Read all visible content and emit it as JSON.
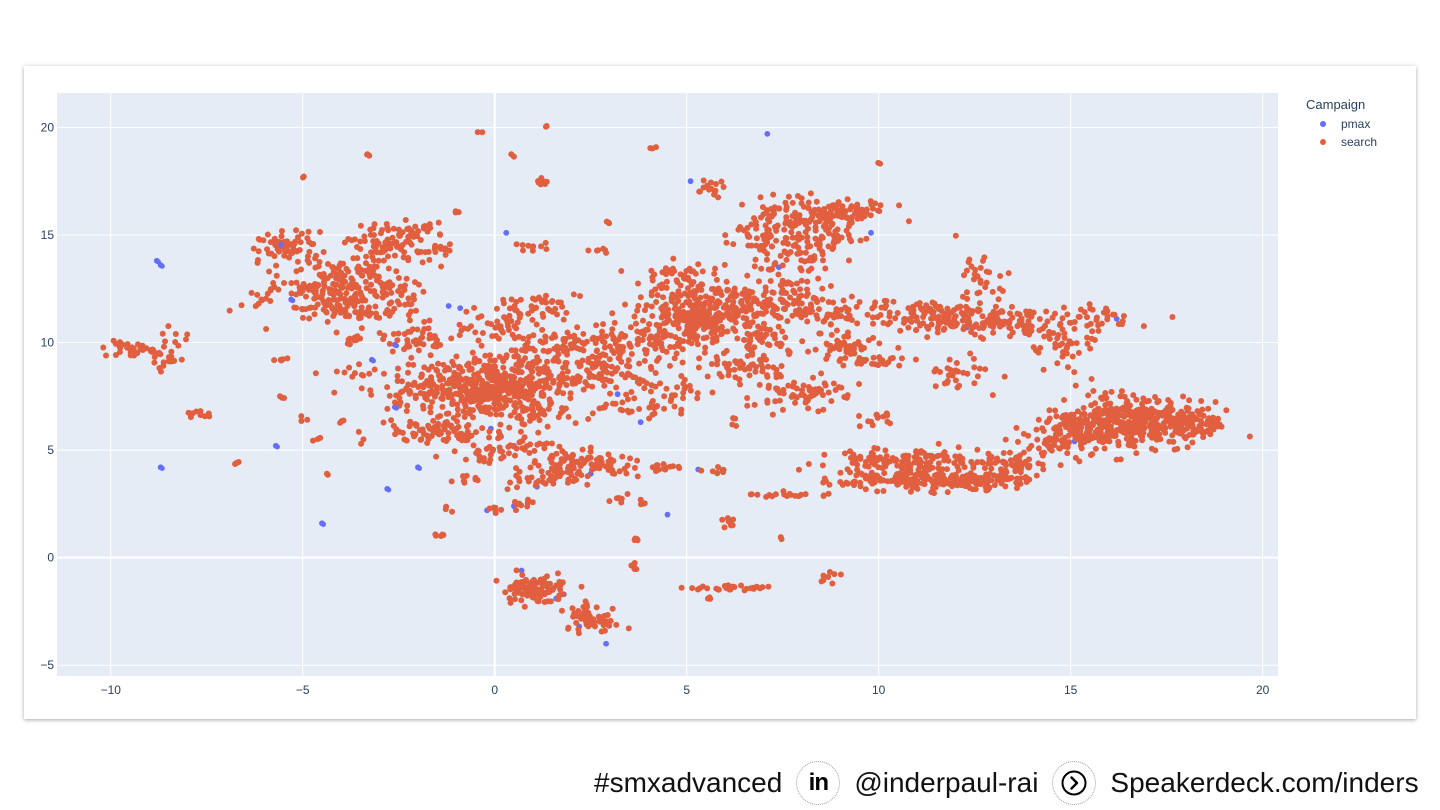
{
  "chart_data": {
    "type": "scatter",
    "title": "",
    "xlabel": "",
    "ylabel": "",
    "xlim": [
      -11.4,
      20.4
    ],
    "ylim": [
      -5.5,
      21.6
    ],
    "x_ticks": [
      -10,
      -5,
      0,
      5,
      10,
      15,
      20
    ],
    "y_ticks": [
      -5,
      0,
      5,
      10,
      15,
      20
    ],
    "x_tick_labels": [
      "−10",
      "−5",
      "0",
      "5",
      "10",
      "15",
      "20"
    ],
    "y_tick_labels": [
      "−5",
      "0",
      "5",
      "10",
      "15",
      "20"
    ],
    "grid": true,
    "legend": {
      "title": "Campaign",
      "placement": "top-right"
    },
    "series": [
      {
        "name": "pmax",
        "color": "#636efa",
        "points": [
          [
            -8.8,
            13.8
          ],
          [
            -8.7,
            13.6
          ],
          [
            -8.7,
            4.2
          ],
          [
            -5.6,
            14.6
          ],
          [
            -5.3,
            12.0
          ],
          [
            -5.7,
            5.2
          ],
          [
            -4.5,
            1.6
          ],
          [
            -3.2,
            9.2
          ],
          [
            -2.8,
            3.2
          ],
          [
            -2.6,
            7.0
          ],
          [
            -2.6,
            9.9
          ],
          [
            -2.0,
            4.2
          ],
          [
            -1.2,
            11.7
          ],
          [
            -0.9,
            11.6
          ],
          [
            -0.1,
            6.0
          ],
          [
            0.3,
            15.1
          ],
          [
            0.5,
            5.2
          ],
          [
            0.5,
            2.4
          ],
          [
            0.7,
            -0.6
          ],
          [
            0.9,
            -1.3
          ],
          [
            1.1,
            3.3
          ],
          [
            1.8,
            -1.7
          ],
          [
            2.2,
            -3.2
          ],
          [
            2.5,
            3.9
          ],
          [
            2.9,
            -4.0
          ],
          [
            3.2,
            7.6
          ],
          [
            3.8,
            6.3
          ],
          [
            4.5,
            2.0
          ],
          [
            5.3,
            4.1
          ],
          [
            5.1,
            17.5
          ],
          [
            7.1,
            19.7
          ],
          [
            7.4,
            13.5
          ],
          [
            9.8,
            15.1
          ],
          [
            12.3,
            10.7
          ],
          [
            13.4,
            10.9
          ],
          [
            15.1,
            5.4
          ],
          [
            15.9,
            5.6
          ],
          [
            16.2,
            11.1
          ],
          [
            1.6,
            -1.9
          ],
          [
            -0.2,
            2.2
          ]
        ]
      },
      {
        "name": "search",
        "color": "#e15f3f",
        "clusters": [
          [
            -9.7,
            9.8,
            0.35,
            0.2,
            18
          ],
          [
            -9.1,
            9.5,
            0.3,
            0.25,
            16
          ],
          [
            -8.5,
            9.3,
            0.25,
            0.3,
            16
          ],
          [
            -8.3,
            10.2,
            0.2,
            0.25,
            8
          ],
          [
            -7.7,
            6.7,
            0.15,
            0.12,
            10
          ],
          [
            -6.7,
            4.4,
            0.06,
            0.06,
            3
          ],
          [
            -5.3,
            14.5,
            0.45,
            0.35,
            60
          ],
          [
            -4.5,
            12.4,
            0.7,
            0.65,
            140
          ],
          [
            -4.0,
            13.2,
            0.5,
            0.4,
            40
          ],
          [
            -3.4,
            11.6,
            0.6,
            0.45,
            70
          ],
          [
            -2.8,
            12.8,
            0.45,
            0.45,
            45
          ],
          [
            -2.7,
            14.6,
            0.6,
            0.45,
            70
          ],
          [
            -2.1,
            15.1,
            0.35,
            0.3,
            25
          ],
          [
            -1.6,
            14.3,
            0.35,
            0.2,
            15
          ],
          [
            -5.5,
            7.5,
            0.08,
            0.08,
            3
          ],
          [
            -5.0,
            6.5,
            0.08,
            0.08,
            3
          ],
          [
            -4.7,
            5.5,
            0.08,
            0.08,
            3
          ],
          [
            -3.6,
            8.6,
            0.2,
            0.15,
            8
          ],
          [
            -2.1,
            10.1,
            0.4,
            0.3,
            40
          ],
          [
            -1.1,
            8.1,
            1.0,
            0.65,
            240
          ],
          [
            0.0,
            7.7,
            0.7,
            0.6,
            150
          ],
          [
            -1.5,
            5.9,
            0.9,
            0.35,
            90
          ],
          [
            0.8,
            9.2,
            0.7,
            0.35,
            60
          ],
          [
            1.4,
            8.1,
            0.9,
            0.35,
            80
          ],
          [
            1.0,
            11.6,
            0.7,
            0.45,
            50
          ],
          [
            0.1,
            10.6,
            0.7,
            0.3,
            40
          ],
          [
            1.9,
            10.1,
            0.6,
            0.3,
            40
          ],
          [
            2.7,
            8.7,
            1.0,
            0.4,
            80
          ],
          [
            3.2,
            9.8,
            0.7,
            0.35,
            50
          ],
          [
            4.2,
            10.2,
            0.8,
            0.5,
            60
          ],
          [
            5.1,
            11.3,
            0.8,
            0.7,
            220
          ],
          [
            6.2,
            11.8,
            0.6,
            0.5,
            80
          ],
          [
            6.7,
            10.3,
            0.6,
            0.5,
            60
          ],
          [
            6.3,
            8.9,
            0.4,
            0.35,
            40
          ],
          [
            4.9,
            12.9,
            0.5,
            0.4,
            50
          ],
          [
            7.8,
            12.2,
            0.7,
            0.5,
            70
          ],
          [
            8.7,
            11.4,
            0.9,
            0.3,
            60
          ],
          [
            7.6,
            14.2,
            0.6,
            0.5,
            50
          ],
          [
            8.0,
            15.9,
            0.8,
            0.4,
            110
          ],
          [
            9.2,
            16.0,
            0.5,
            0.25,
            60
          ],
          [
            6.7,
            15.0,
            0.4,
            0.25,
            25
          ],
          [
            5.5,
            17.2,
            0.3,
            0.2,
            15
          ],
          [
            8.0,
            7.6,
            0.6,
            0.35,
            70
          ],
          [
            9.1,
            9.9,
            0.6,
            0.25,
            40
          ],
          [
            9.9,
            9.2,
            0.6,
            0.2,
            30
          ],
          [
            7.1,
            8.7,
            0.3,
            0.4,
            15
          ],
          [
            2.3,
            4.4,
            0.6,
            0.35,
            90
          ],
          [
            1.4,
            3.7,
            0.7,
            0.3,
            40
          ],
          [
            1.1,
            6.8,
            0.7,
            0.25,
            40
          ],
          [
            0.7,
            5.3,
            0.5,
            0.3,
            30
          ],
          [
            -0.3,
            4.7,
            0.5,
            0.25,
            20
          ],
          [
            4.4,
            4.2,
            0.3,
            0.12,
            14
          ],
          [
            3.8,
            7.0,
            0.6,
            0.25,
            30
          ],
          [
            4.7,
            8.0,
            0.5,
            0.3,
            25
          ],
          [
            1.0,
            -1.5,
            0.4,
            0.35,
            110
          ],
          [
            2.5,
            -3.0,
            0.35,
            0.25,
            40
          ],
          [
            2.3,
            -2.6,
            0.3,
            0.3,
            25
          ],
          [
            6.1,
            -1.4,
            0.5,
            0.07,
            30
          ],
          [
            7.4,
            2.9,
            0.5,
            0.06,
            18
          ],
          [
            8.7,
            -0.9,
            0.15,
            0.12,
            8
          ],
          [
            11.0,
            3.6,
            1.1,
            0.25,
            170
          ],
          [
            10.3,
            4.5,
            0.7,
            0.35,
            80
          ],
          [
            11.8,
            4.4,
            1.0,
            0.3,
            70
          ],
          [
            12.7,
            3.6,
            0.6,
            0.2,
            60
          ],
          [
            13.6,
            4.3,
            0.5,
            0.3,
            40
          ],
          [
            9.9,
            6.6,
            0.2,
            0.3,
            15
          ],
          [
            15.2,
            5.9,
            0.6,
            0.4,
            80
          ],
          [
            16.2,
            6.3,
            0.8,
            0.7,
            240
          ],
          [
            17.2,
            6.2,
            0.8,
            0.5,
            150
          ],
          [
            18.2,
            6.2,
            0.4,
            0.3,
            80
          ],
          [
            14.5,
            5.2,
            0.5,
            0.25,
            30
          ],
          [
            11.9,
            11.1,
            0.8,
            0.4,
            100
          ],
          [
            13.5,
            11.0,
            0.7,
            0.35,
            60
          ],
          [
            14.8,
            9.9,
            0.4,
            0.6,
            40
          ],
          [
            15.7,
            11.1,
            0.6,
            0.35,
            40
          ],
          [
            12.1,
            8.5,
            0.35,
            0.45,
            30
          ],
          [
            12.6,
            12.8,
            0.4,
            0.7,
            30
          ],
          [
            8.4,
            14.6,
            0.6,
            0.4,
            40
          ],
          [
            -3.3,
            18.7,
            0.05,
            0.05,
            3
          ],
          [
            -5.0,
            17.7,
            0.04,
            0.04,
            2
          ],
          [
            -0.4,
            19.8,
            0.04,
            0.04,
            2
          ],
          [
            1.3,
            20.1,
            0.04,
            0.04,
            2
          ],
          [
            0.5,
            18.7,
            0.04,
            0.04,
            2
          ],
          [
            4.1,
            19.1,
            0.06,
            0.06,
            3
          ],
          [
            10.0,
            18.3,
            0.04,
            0.04,
            2
          ],
          [
            1.3,
            17.5,
            0.15,
            0.12,
            8
          ],
          [
            -1.0,
            16.1,
            0.06,
            0.06,
            3
          ],
          [
            2.9,
            15.6,
            0.05,
            0.05,
            3
          ],
          [
            1.0,
            14.5,
            0.25,
            0.1,
            10
          ],
          [
            2.8,
            14.3,
            0.15,
            0.1,
            6
          ],
          [
            -6.0,
            12.0,
            0.05,
            0.05,
            3
          ],
          [
            -5.5,
            9.2,
            0.1,
            0.06,
            5
          ],
          [
            -4.3,
            3.9,
            0.04,
            0.04,
            2
          ],
          [
            -1.4,
            1.1,
            0.08,
            0.08,
            5
          ],
          [
            0.0,
            2.3,
            0.1,
            0.1,
            6
          ],
          [
            0.8,
            2.5,
            0.2,
            0.15,
            10
          ],
          [
            3.2,
            2.7,
            0.1,
            0.1,
            6
          ],
          [
            3.7,
            0.9,
            0.08,
            0.08,
            4
          ],
          [
            3.6,
            -0.5,
            0.08,
            0.12,
            5
          ],
          [
            5.6,
            -1.9,
            0.05,
            0.05,
            3
          ],
          [
            6.1,
            1.7,
            0.1,
            0.2,
            8
          ],
          [
            7.5,
            0.9,
            0.04,
            0.04,
            2
          ],
          [
            5.8,
            4.1,
            0.2,
            0.12,
            8
          ],
          [
            6.3,
            6.3,
            0.05,
            0.1,
            4
          ],
          [
            11.5,
            11.3,
            0.8,
            0.3,
            40
          ],
          [
            -1.6,
            10.2,
            0.1,
            0.1,
            5
          ],
          [
            -2.2,
            11.8,
            0.1,
            0.1,
            4
          ],
          [
            -0.7,
            3.7,
            0.2,
            0.15,
            8
          ],
          [
            -1.2,
            2.2,
            0.08,
            0.08,
            3
          ],
          [
            3.9,
            2.6,
            0.12,
            0.1,
            5
          ],
          [
            -4.0,
            6.3,
            0.06,
            0.06,
            3
          ],
          [
            -3.6,
            10.1,
            0.2,
            0.15,
            10
          ]
        ]
      }
    ]
  },
  "footer": {
    "hashtag": "#smxadvanced",
    "linkedin_icon": "linkedin-icon",
    "linkedin_glyph": "in",
    "linkedin_handle": "@inderpaul-rai",
    "speakerdeck_icon": "chevron-right-circle-icon",
    "speakerdeck_url": "Speakerdeck.com/inders"
  }
}
